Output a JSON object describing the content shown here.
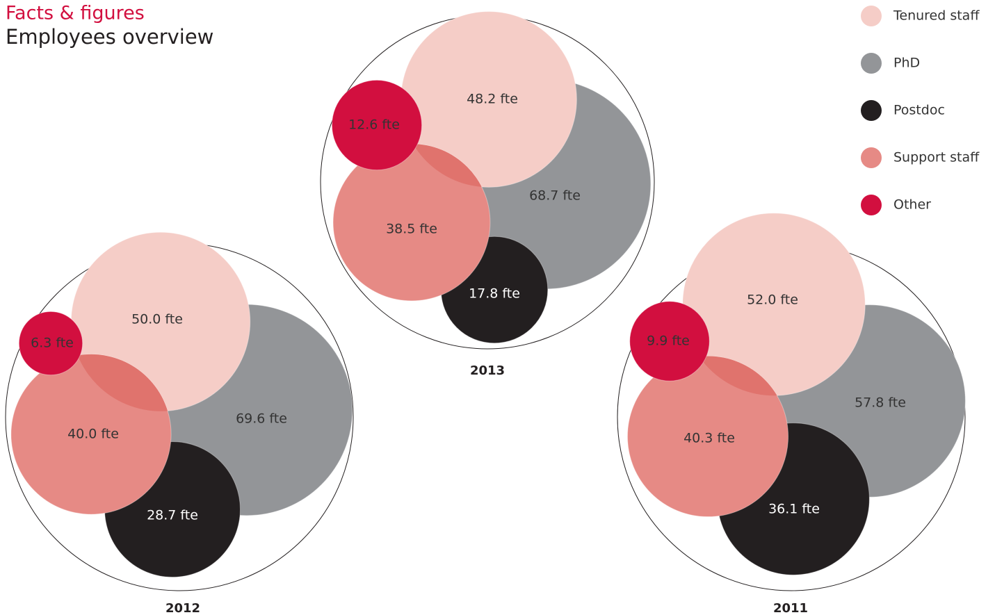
{
  "title": "Facts & figures",
  "subtitle": "Employees overview",
  "categories": [
    "Tenured staff",
    "PhD",
    "Postdoc",
    "Support staff",
    "Other"
  ],
  "colors": [
    "#f5cdc7",
    "#939598",
    "#231f20",
    "#e68a85",
    "#d20f3f"
  ],
  "chart_data": [
    {
      "type": "bubble",
      "title": "2013",
      "values": [
        48.2,
        68.7,
        17.8,
        38.5,
        12.6
      ],
      "value_labels": [
        "48.2 fte",
        "68.7 fte",
        "17.8 fte",
        "38.5 fte",
        "12.6 fte"
      ]
    },
    {
      "type": "bubble",
      "title": "2012",
      "values": [
        50.0,
        69.6,
        28.7,
        40.0,
        6.3
      ],
      "value_labels": [
        "50.0 fte",
        "69.6 fte",
        "28.7 fte",
        "40.0 fte",
        "6.3 fte"
      ]
    },
    {
      "type": "bubble",
      "title": "2011",
      "values": [
        52.0,
        57.8,
        36.1,
        40.3,
        9.9
      ],
      "value_labels": [
        "52.0 fte",
        "57.8 fte",
        "36.1 fte",
        "40.3 fte",
        "9.9 fte"
      ]
    }
  ]
}
